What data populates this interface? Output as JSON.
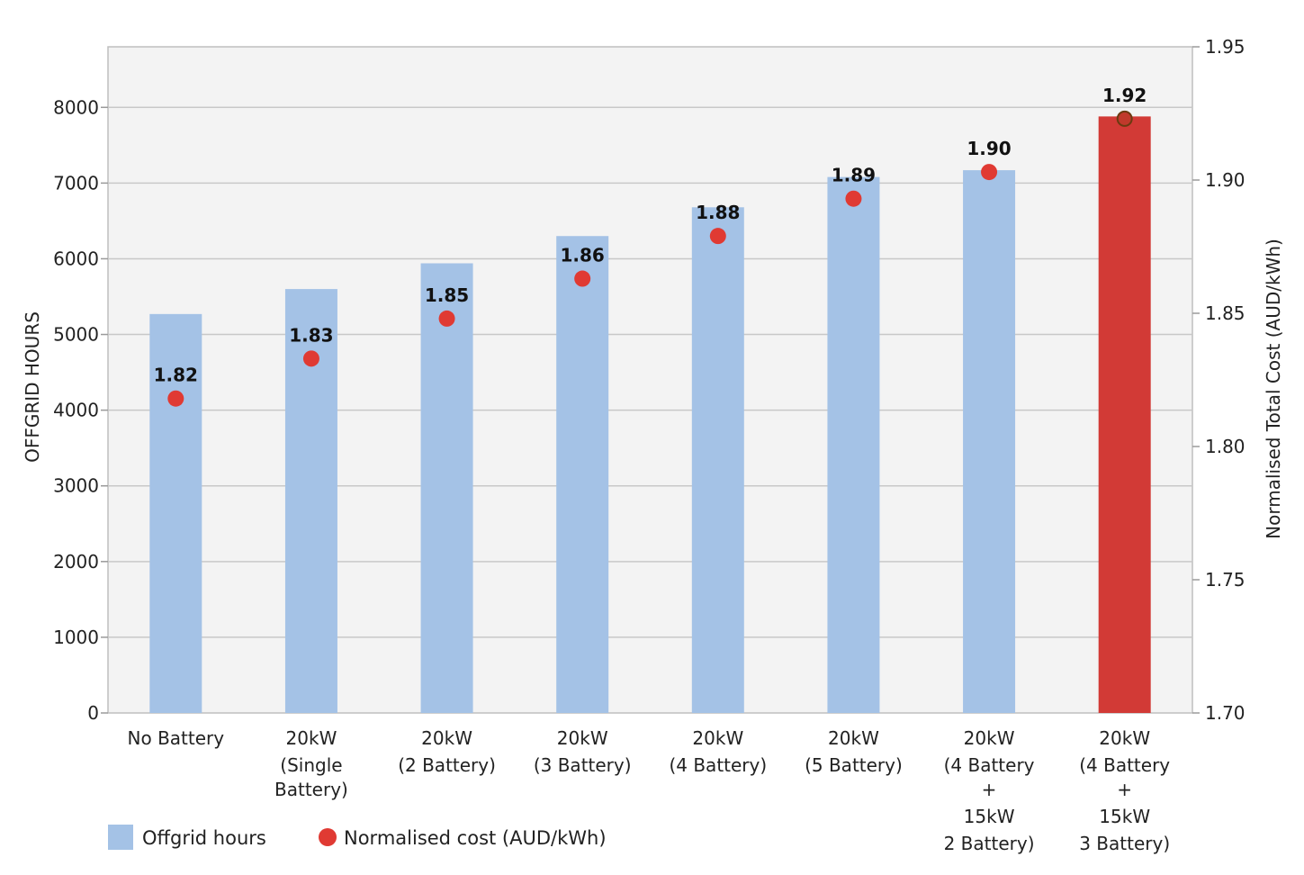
{
  "chart_data": {
    "type": "bar",
    "title": "",
    "categories": [
      [
        "No Battery"
      ],
      [
        "20kW",
        "(Single",
        "Battery)"
      ],
      [
        "20kW",
        "(2 Battery)"
      ],
      [
        "20kW",
        "(3 Battery)"
      ],
      [
        "20kW",
        "(4 Battery)"
      ],
      [
        "20kW",
        "(5 Battery)"
      ],
      [
        "20kW",
        "(4 Battery",
        "+",
        "15kW",
        "2 Battery)"
      ],
      [
        "20kW",
        "(4 Battery",
        "+",
        "15kW",
        "3 Battery)"
      ]
    ],
    "series": [
      {
        "name": "Offgrid hours",
        "type": "bar",
        "axis": "left",
        "values": [
          5270,
          5600,
          5940,
          6300,
          6680,
          7080,
          7170,
          7880
        ],
        "color": "#a4c2e6",
        "highlight_index": 7,
        "highlight_color": "#d23a36"
      },
      {
        "name": "Normalised cost (AUD/kWh)",
        "type": "scatter",
        "axis": "right",
        "values": [
          1.818,
          1.833,
          1.848,
          1.863,
          1.879,
          1.893,
          1.903,
          1.923
        ],
        "labels": [
          "1.82",
          "1.83",
          "1.85",
          "1.86",
          "1.88",
          "1.89",
          "1.90",
          "1.92"
        ],
        "color": "#e03a33",
        "highlight_index": 7,
        "highlight_color": "#c0392b"
      }
    ],
    "y_left": {
      "label": "OFFGRID HOURS",
      "range": [
        0,
        8800
      ],
      "ticks": [
        0,
        1000,
        2000,
        3000,
        4000,
        5000,
        6000,
        7000,
        8000
      ]
    },
    "y_right": {
      "label": "Normalised Total Cost (AUD/kWh)",
      "range": [
        1.7,
        1.95
      ],
      "ticks": [
        "1.70",
        "1.75",
        "1.80",
        "1.85",
        "1.90",
        "1.95"
      ]
    },
    "grid": true,
    "plot_background": "#f3f3f3",
    "legend_position": "bottom-left"
  }
}
